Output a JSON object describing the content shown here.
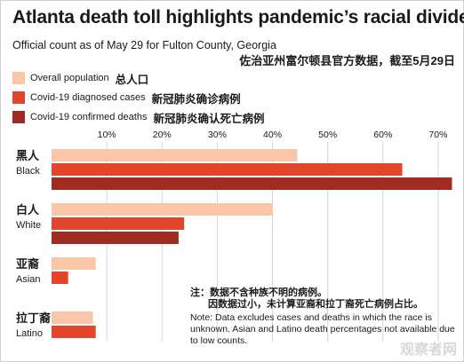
{
  "title": "Atlanta death toll highlights pandemic’s racial divide",
  "subtitle_en": "Official count as of May 29 for Fulton County, Georgia",
  "subtitle_zh": "佐治亚州富尔顿县官方数据，截至5月29日",
  "legend": [
    {
      "en": "Overall population",
      "zh": "总人口",
      "color": "#f9c7a8"
    },
    {
      "en": "Covid-19 diagnosed cases",
      "zh": "新冠肺炎确诊病例",
      "color": "#e2452a"
    },
    {
      "en": "Covid-19 confirmed deaths",
      "zh": "新冠肺炎确认死亡病例",
      "color": "#a12a22"
    }
  ],
  "note": {
    "zh_line1": "注：数据不含种族不明的病例。",
    "zh_line2": "因数据过小，未计算亚裔和拉丁裔死亡病例占比。",
    "en": "Note: Data excludes cases and deaths in which the race is unknown. Asian and Latino death percentages not available due to low counts."
  },
  "watermark": "观察者网",
  "chart_data": {
    "type": "bar",
    "orientation": "horizontal",
    "categories": [
      {
        "zh": "黑人",
        "en": "Black"
      },
      {
        "zh": "白人",
        "en": "White"
      },
      {
        "zh": "亚裔",
        "en": "Asian"
      },
      {
        "zh": "拉丁裔",
        "en": "Latino"
      }
    ],
    "series": [
      {
        "name": "Overall population",
        "color": "#f9c7a8",
        "values": [
          44.5,
          40,
          8,
          7.5
        ]
      },
      {
        "name": "Covid-19 diagnosed cases",
        "color": "#e2452a",
        "values": [
          63.5,
          24,
          3,
          8
        ]
      },
      {
        "name": "Covid-19 confirmed deaths",
        "color": "#a12a22",
        "values": [
          72.5,
          23,
          null,
          null
        ]
      }
    ],
    "x_ticks": [
      "10%",
      "20%",
      "30%",
      "40%",
      "50%",
      "60%",
      "70%"
    ],
    "x_tick_values": [
      10,
      20,
      30,
      40,
      50,
      60,
      70
    ],
    "xlim": [
      0,
      75
    ],
    "grid": true
  }
}
